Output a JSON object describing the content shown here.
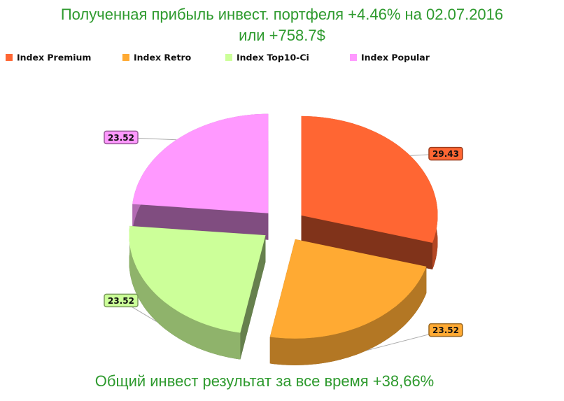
{
  "chart_data": {
    "type": "pie",
    "title": "Полученная прибыль инвест. портфеля +4.46% на 02.07.2016",
    "subtitle": "или +758.7$",
    "footer": "Общий инвест результат  за все время +38,66%",
    "categories": [
      "Index Premium",
      "Index Retro",
      "Index Top10-Ci",
      "Index Popular"
    ],
    "values": [
      29.43,
      23.52,
      23.52,
      23.52
    ],
    "colors": [
      "#ff6633",
      "#ffaa33",
      "#ccff99",
      "#ff99ff"
    ],
    "legend": "top-left"
  }
}
